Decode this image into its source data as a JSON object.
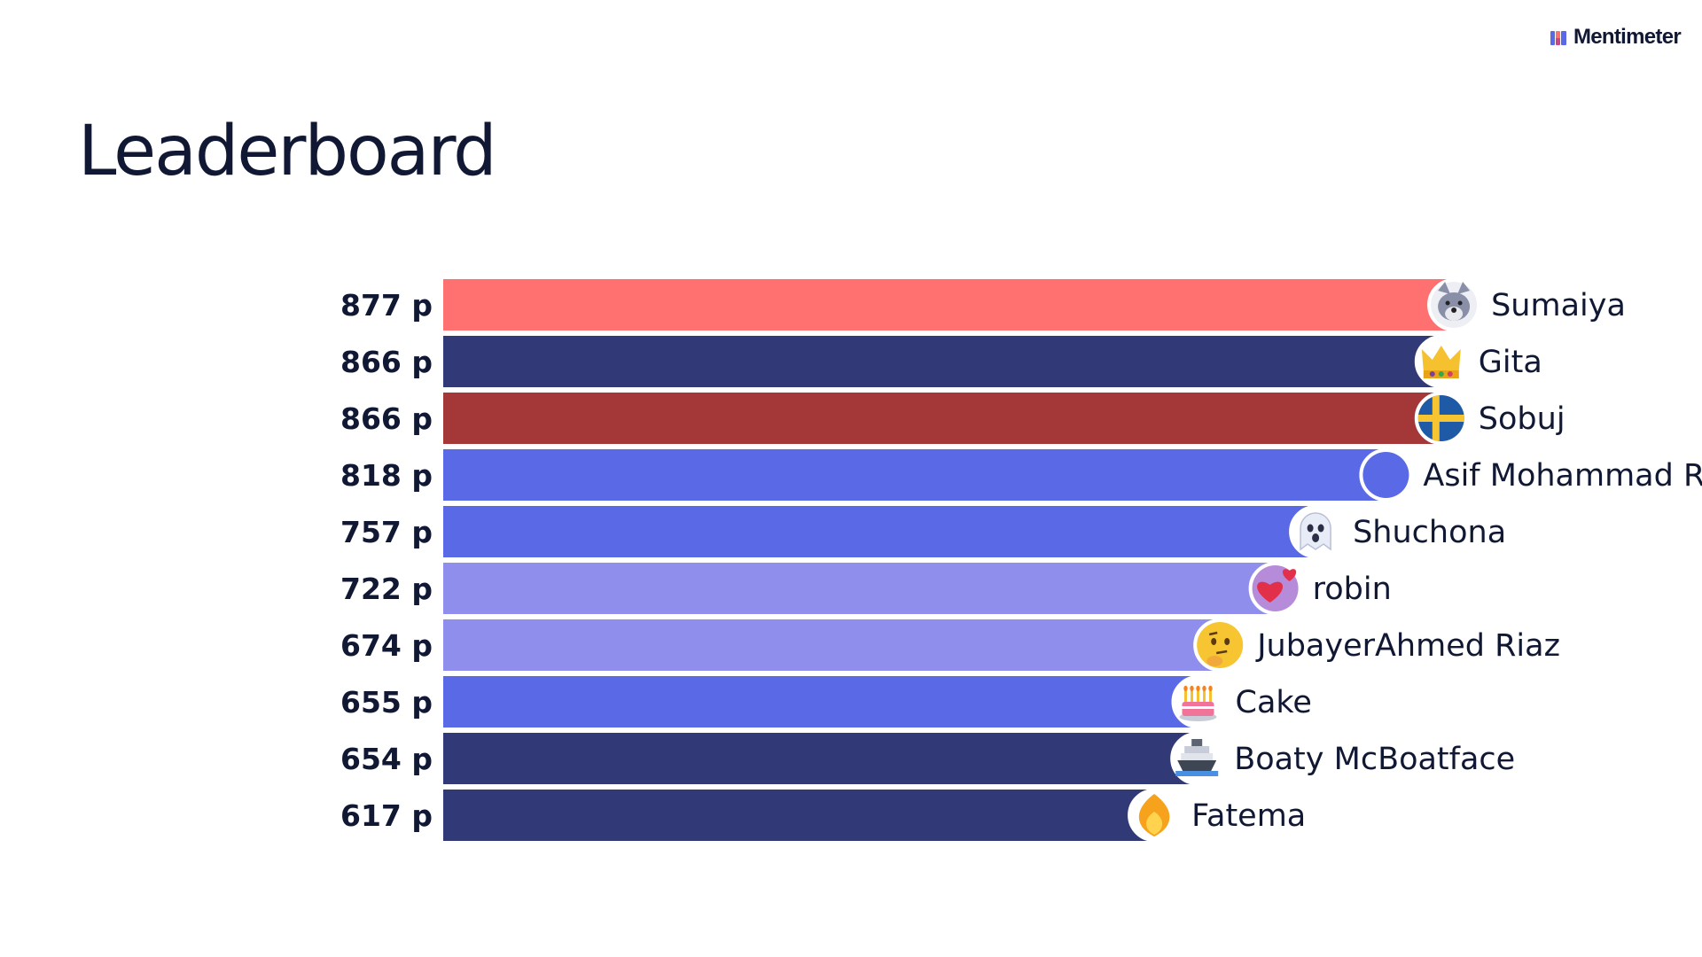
{
  "brand": {
    "name": "Mentimeter",
    "logo_colors": [
      "#5A6AE6",
      "#FF7171",
      "#C9468B"
    ]
  },
  "title": "Leaderboard",
  "chart_data": {
    "type": "bar",
    "orientation": "horizontal",
    "title": "Leaderboard",
    "score_suffix": " p",
    "xlim": [
      0,
      1020
    ],
    "entries": [
      {
        "rank": 1,
        "name": "Sumaiya",
        "score": 877,
        "bar_color": "#FF7171",
        "avatar": "wolf-face-icon",
        "avatar_color": "#8A8FA8"
      },
      {
        "rank": 2,
        "name": "Gita",
        "score": 866,
        "bar_color": "#313A76",
        "avatar": "crown-icon",
        "avatar_color": "#F6C12F"
      },
      {
        "rank": 3,
        "name": "Sobuj",
        "score": 866,
        "bar_color": "#A43838",
        "avatar": "flag-sweden-icon",
        "avatar_color": "#1F5AA6"
      },
      {
        "rank": 4,
        "name": "Asif Mohammad Rakib",
        "score": 818,
        "bar_color": "#5A6AE6",
        "avatar": "plain-circle-icon",
        "avatar_color": "#5A6AE6"
      },
      {
        "rank": 5,
        "name": "Shuchona",
        "score": 757,
        "bar_color": "#5A6AE6",
        "avatar": "ghost-icon",
        "avatar_color": "#E8ECF7"
      },
      {
        "rank": 6,
        "name": "robin",
        "score": 722,
        "bar_color": "#8F8EEC",
        "avatar": "two-hearts-icon",
        "avatar_color": "#E2304A"
      },
      {
        "rank": 7,
        "name": "JubayerAhmed Riaz",
        "score": 674,
        "bar_color": "#8F8EEC",
        "avatar": "thinking-face-icon",
        "avatar_color": "#F7C531"
      },
      {
        "rank": 8,
        "name": "Cake",
        "score": 655,
        "bar_color": "#5A6AE6",
        "avatar": "birthday-cake-icon",
        "avatar_color": "#F0749A"
      },
      {
        "rank": 9,
        "name": "Boaty McBoatface",
        "score": 654,
        "bar_color": "#313A76",
        "avatar": "ship-icon",
        "avatar_color": "#5B6470"
      },
      {
        "rank": 10,
        "name": "Fatema",
        "score": 617,
        "bar_color": "#313A76",
        "avatar": "fire-icon",
        "avatar_color": "#F7A21D"
      }
    ]
  }
}
